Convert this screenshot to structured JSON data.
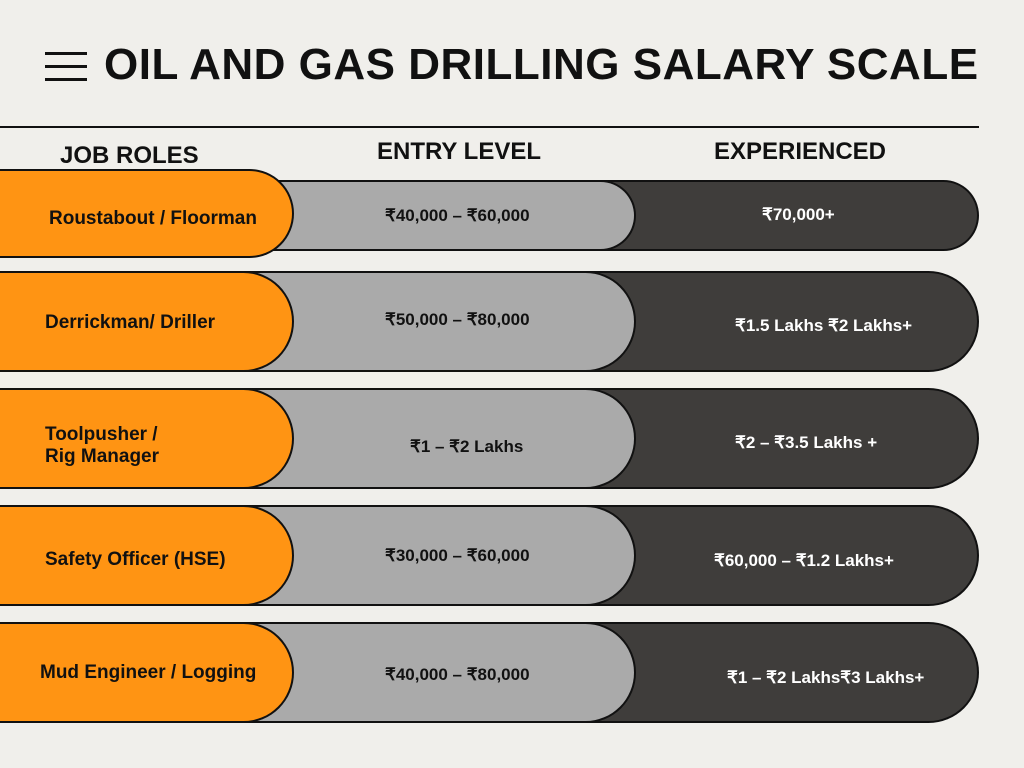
{
  "header": {
    "title": "OIL AND GAS DRILLING SALARY SCALE"
  },
  "columns": {
    "job_roles": "JOB ROLES",
    "entry_level": "ENTRY LEVEL",
    "experienced": "EXPERIENCED"
  },
  "rows": [
    {
      "role": "Roustabout / Floorman",
      "entry": "₹40,000 – ₹60,000",
      "experienced": "₹70,000+"
    },
    {
      "role": "Derrickman/ Driller",
      "entry": "₹50,000 – ₹80,000",
      "experienced": "₹1.5 Lakhs  ₹2 Lakhs+"
    },
    {
      "role_line1": "Toolpusher /",
      "role_line2": "Rig Manager",
      "entry": "₹1 – ₹2 Lakhs",
      "experienced": "₹2 – ₹3.5 Lakhs +"
    },
    {
      "role": "Safety Officer (HSE)",
      "entry": "₹30,000 – ₹60,000",
      "experienced": "₹60,000 – ₹1.2 Lakhs+"
    },
    {
      "role": "Mud Engineer / Logging",
      "entry": "₹40,000 – ₹80,000",
      "experienced": "₹1 – ₹2 Lakhs₹3 Lakhs+"
    }
  ],
  "colors": {
    "role": "#ff9413",
    "entry": "#aaaaaa",
    "experienced": "#3f3d3b",
    "background": "#f0efeb"
  },
  "icons": {
    "menu": "hamburger-menu-icon"
  }
}
